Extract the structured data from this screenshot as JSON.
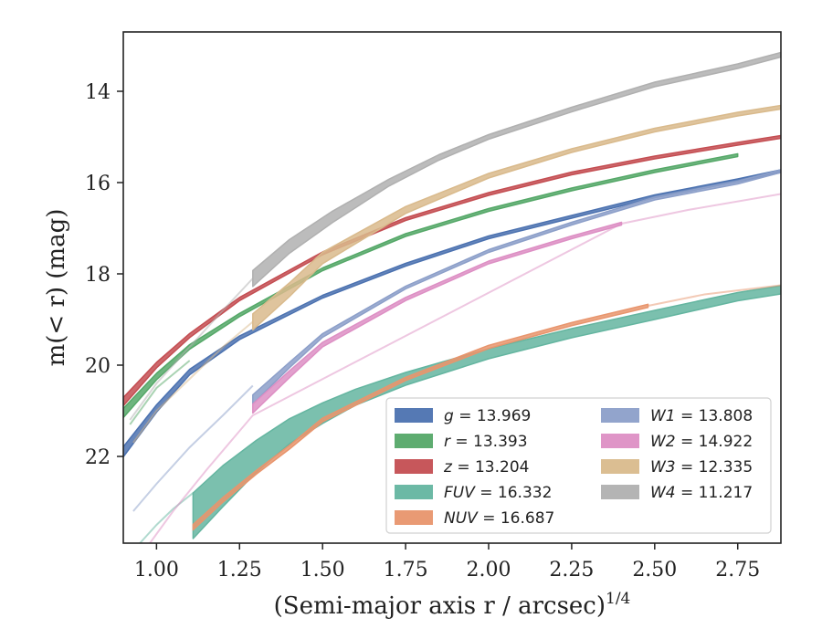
{
  "chart_data": {
    "type": "line",
    "title": "",
    "xlabel": "(Semi-major axis r / arcsec)",
    "xlabel_sup": "1/4",
    "ylabel": "m(< r) (mag)",
    "xlim": [
      0.9,
      2.88
    ],
    "ylim": [
      23.9,
      12.7
    ],
    "y_inverted": true,
    "x_ticks": [
      1.0,
      1.25,
      1.5,
      1.75,
      2.0,
      2.25,
      2.5,
      2.75
    ],
    "x_tick_labels": [
      "1.00",
      "1.25",
      "1.50",
      "1.75",
      "2.00",
      "2.25",
      "2.50",
      "2.75"
    ],
    "y_ticks": [
      14,
      16,
      18,
      20,
      22
    ],
    "y_tick_labels": [
      "14",
      "16",
      "18",
      "20",
      "22"
    ],
    "grid": false,
    "legend_position": "bottom-right",
    "legend_columns": 2,
    "series": [
      {
        "name": "g = 13.969",
        "symbol": "g",
        "value": "13.969",
        "color": "#4c72b0",
        "band": [
          {
            "x": 0.9,
            "y": 21.9,
            "w": 0.22
          },
          {
            "x": 1.0,
            "y": 20.95,
            "w": 0.16
          },
          {
            "x": 1.1,
            "y": 20.15,
            "w": 0.12
          },
          {
            "x": 1.25,
            "y": 19.4,
            "w": 0.08
          },
          {
            "x": 1.5,
            "y": 18.5,
            "w": 0.06
          },
          {
            "x": 1.75,
            "y": 17.8,
            "w": 0.06
          },
          {
            "x": 2.0,
            "y": 17.2,
            "w": 0.06
          },
          {
            "x": 2.25,
            "y": 16.75,
            "w": 0.06
          },
          {
            "x": 2.5,
            "y": 16.3,
            "w": 0.06
          },
          {
            "x": 2.75,
            "y": 15.95,
            "w": 0.06
          },
          {
            "x": 2.88,
            "y": 15.75,
            "w": 0.06
          }
        ],
        "faint": []
      },
      {
        "name": "r = 13.393",
        "symbol": "r",
        "value": "13.393",
        "color": "#55a868",
        "band": [
          {
            "x": 0.9,
            "y": 21.05,
            "w": 0.2
          },
          {
            "x": 1.0,
            "y": 20.25,
            "w": 0.14
          },
          {
            "x": 1.1,
            "y": 19.6,
            "w": 0.1
          },
          {
            "x": 1.25,
            "y": 18.9,
            "w": 0.07
          },
          {
            "x": 1.5,
            "y": 17.9,
            "w": 0.06
          },
          {
            "x": 1.75,
            "y": 17.15,
            "w": 0.06
          },
          {
            "x": 2.0,
            "y": 16.6,
            "w": 0.06
          },
          {
            "x": 2.25,
            "y": 16.15,
            "w": 0.06
          },
          {
            "x": 2.5,
            "y": 15.75,
            "w": 0.06
          },
          {
            "x": 2.75,
            "y": 15.4,
            "w": 0.06
          }
        ],
        "faint": [
          {
            "x": 0.92,
            "y": 21.3
          },
          {
            "x": 1.0,
            "y": 20.5
          },
          {
            "x": 1.1,
            "y": 19.9
          }
        ]
      },
      {
        "name": "z = 13.204",
        "symbol": "z",
        "value": "13.204",
        "color": "#c44e52",
        "band": [
          {
            "x": 0.9,
            "y": 20.8,
            "w": 0.18
          },
          {
            "x": 1.0,
            "y": 20.0,
            "w": 0.12
          },
          {
            "x": 1.1,
            "y": 19.35,
            "w": 0.09
          },
          {
            "x": 1.25,
            "y": 18.55,
            "w": 0.07
          },
          {
            "x": 1.5,
            "y": 17.55,
            "w": 0.06
          },
          {
            "x": 1.75,
            "y": 16.8,
            "w": 0.06
          },
          {
            "x": 2.0,
            "y": 16.25,
            "w": 0.06
          },
          {
            "x": 2.25,
            "y": 15.8,
            "w": 0.06
          },
          {
            "x": 2.5,
            "y": 15.45,
            "w": 0.06
          },
          {
            "x": 2.75,
            "y": 15.15,
            "w": 0.06
          },
          {
            "x": 2.88,
            "y": 15.0,
            "w": 0.06
          }
        ],
        "faint": []
      },
      {
        "name": "FUV = 16.332",
        "symbol": "FUV",
        "value": "16.332",
        "color": "#64b5a0",
        "band": [
          {
            "x": 1.11,
            "y": 23.3,
            "w": 1.0
          },
          {
            "x": 1.2,
            "y": 22.65,
            "w": 0.9
          },
          {
            "x": 1.3,
            "y": 22.0,
            "w": 0.7
          },
          {
            "x": 1.4,
            "y": 21.45,
            "w": 0.55
          },
          {
            "x": 1.5,
            "y": 21.05,
            "w": 0.45
          },
          {
            "x": 1.6,
            "y": 20.7,
            "w": 0.35
          },
          {
            "x": 1.75,
            "y": 20.3,
            "w": 0.28
          },
          {
            "x": 2.0,
            "y": 19.75,
            "w": 0.22
          },
          {
            "x": 2.25,
            "y": 19.3,
            "w": 0.2
          },
          {
            "x": 2.5,
            "y": 18.9,
            "w": 0.2
          },
          {
            "x": 2.75,
            "y": 18.5,
            "w": 0.18
          },
          {
            "x": 2.88,
            "y": 18.35,
            "w": 0.18
          }
        ],
        "faint": [
          {
            "x": 0.95,
            "y": 23.9
          },
          {
            "x": 1.0,
            "y": 23.5
          },
          {
            "x": 1.05,
            "y": 23.15
          },
          {
            "x": 1.11,
            "y": 22.8
          }
        ]
      },
      {
        "name": "NUV = 16.687",
        "symbol": "NUV",
        "value": "16.687",
        "color": "#e8956d",
        "band": [
          {
            "x": 1.11,
            "y": 23.55,
            "w": 0.12
          },
          {
            "x": 1.2,
            "y": 22.95,
            "w": 0.1
          },
          {
            "x": 1.3,
            "y": 22.35,
            "w": 0.08
          },
          {
            "x": 1.4,
            "y": 21.8,
            "w": 0.08
          },
          {
            "x": 1.5,
            "y": 21.2,
            "w": 0.08
          },
          {
            "x": 1.75,
            "y": 20.3,
            "w": 0.07
          },
          {
            "x": 2.0,
            "y": 19.6,
            "w": 0.07
          },
          {
            "x": 2.25,
            "y": 19.1,
            "w": 0.07
          },
          {
            "x": 2.48,
            "y": 18.7,
            "w": 0.07
          }
        ],
        "faint": [
          {
            "x": 2.48,
            "y": 18.7
          },
          {
            "x": 2.65,
            "y": 18.45
          },
          {
            "x": 2.88,
            "y": 18.25
          }
        ]
      },
      {
        "name": "W1 = 13.808",
        "symbol": "W1",
        "value": "13.808",
        "color": "#8c9fc9",
        "band": [
          {
            "x": 1.29,
            "y": 20.75,
            "w": 0.2
          },
          {
            "x": 1.4,
            "y": 20.0,
            "w": 0.12
          },
          {
            "x": 1.5,
            "y": 19.35,
            "w": 0.08
          },
          {
            "x": 1.75,
            "y": 18.3,
            "w": 0.06
          },
          {
            "x": 2.0,
            "y": 17.5,
            "w": 0.06
          },
          {
            "x": 2.25,
            "y": 16.9,
            "w": 0.06
          },
          {
            "x": 2.5,
            "y": 16.35,
            "w": 0.06
          },
          {
            "x": 2.75,
            "y": 16.0,
            "w": 0.06
          },
          {
            "x": 2.88,
            "y": 15.75,
            "w": 0.06
          }
        ],
        "faint": [
          {
            "x": 0.93,
            "y": 23.2
          },
          {
            "x": 1.0,
            "y": 22.6
          },
          {
            "x": 1.1,
            "y": 21.8
          },
          {
            "x": 1.2,
            "y": 21.1
          },
          {
            "x": 1.29,
            "y": 20.45
          }
        ]
      },
      {
        "name": "W2 = 14.922",
        "symbol": "W2",
        "value": "14.922",
        "color": "#dd8fc4",
        "band": [
          {
            "x": 1.29,
            "y": 20.95,
            "w": 0.2
          },
          {
            "x": 1.4,
            "y": 20.2,
            "w": 0.15
          },
          {
            "x": 1.5,
            "y": 19.55,
            "w": 0.1
          },
          {
            "x": 1.75,
            "y": 18.55,
            "w": 0.07
          },
          {
            "x": 2.0,
            "y": 17.75,
            "w": 0.06
          },
          {
            "x": 2.25,
            "y": 17.2,
            "w": 0.06
          },
          {
            "x": 2.4,
            "y": 16.9,
            "w": 0.06
          }
        ],
        "faint": [
          {
            "x": 0.98,
            "y": 23.9
          },
          {
            "x": 1.05,
            "y": 23.2
          },
          {
            "x": 1.15,
            "y": 22.3
          },
          {
            "x": 1.29,
            "y": 21.1
          },
          {
            "x": 2.4,
            "y": 16.9
          },
          {
            "x": 2.6,
            "y": 16.6
          },
          {
            "x": 2.88,
            "y": 16.25
          }
        ]
      },
      {
        "name": "W3 = 12.335",
        "symbol": "W3",
        "value": "12.335",
        "color": "#d9ba8c",
        "band": [
          {
            "x": 1.29,
            "y": 19.05,
            "w": 0.35
          },
          {
            "x": 1.4,
            "y": 18.35,
            "w": 0.3
          },
          {
            "x": 1.5,
            "y": 17.65,
            "w": 0.25
          },
          {
            "x": 1.75,
            "y": 16.6,
            "w": 0.15
          },
          {
            "x": 2.0,
            "y": 15.85,
            "w": 0.1
          },
          {
            "x": 2.25,
            "y": 15.3,
            "w": 0.08
          },
          {
            "x": 2.5,
            "y": 14.85,
            "w": 0.08
          },
          {
            "x": 2.75,
            "y": 14.5,
            "w": 0.08
          },
          {
            "x": 2.88,
            "y": 14.35,
            "w": 0.08
          }
        ],
        "faint": [
          {
            "x": 0.93,
            "y": 21.7
          },
          {
            "x": 1.0,
            "y": 21.0
          },
          {
            "x": 1.1,
            "y": 20.3
          },
          {
            "x": 1.2,
            "y": 19.6
          },
          {
            "x": 1.29,
            "y": 19.05
          }
        ]
      },
      {
        "name": "W4 = 11.217",
        "symbol": "W4",
        "value": "11.217",
        "color": "#b0b0b0",
        "band": [
          {
            "x": 1.29,
            "y": 18.1,
            "w": 0.35
          },
          {
            "x": 1.4,
            "y": 17.4,
            "w": 0.3
          },
          {
            "x": 1.53,
            "y": 16.75,
            "w": 0.25
          },
          {
            "x": 1.7,
            "y": 16.0,
            "w": 0.15
          },
          {
            "x": 1.85,
            "y": 15.45,
            "w": 0.12
          },
          {
            "x": 2.0,
            "y": 15.0,
            "w": 0.1
          },
          {
            "x": 2.25,
            "y": 14.4,
            "w": 0.1
          },
          {
            "x": 2.5,
            "y": 13.85,
            "w": 0.1
          },
          {
            "x": 2.75,
            "y": 13.45,
            "w": 0.1
          },
          {
            "x": 2.88,
            "y": 13.2,
            "w": 0.1
          }
        ],
        "faint": [
          {
            "x": 0.92,
            "y": 21.2
          },
          {
            "x": 1.0,
            "y": 20.4
          },
          {
            "x": 1.1,
            "y": 19.6
          },
          {
            "x": 1.2,
            "y": 18.8
          },
          {
            "x": 1.29,
            "y": 18.1
          }
        ]
      }
    ]
  }
}
